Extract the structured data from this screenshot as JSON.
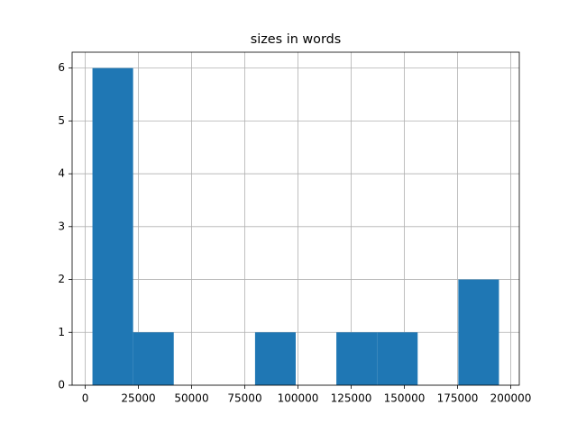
{
  "chart_data": {
    "type": "histogram",
    "title": "sizes in words",
    "bins": [
      3400,
      22508,
      41616,
      60724,
      79832,
      98940,
      118048,
      137156,
      156264,
      175372,
      194480
    ],
    "values": [
      6,
      1,
      0,
      0,
      1,
      0,
      1,
      1,
      0,
      2
    ],
    "color": "#1f77b4",
    "xlim": [
      -6157,
      204037
    ],
    "ylim": [
      0,
      6.3
    ],
    "xticks": [
      0,
      25000,
      50000,
      75000,
      100000,
      125000,
      150000,
      175000,
      200000
    ],
    "yticks": [
      0,
      1,
      2,
      3,
      4,
      5,
      6
    ],
    "grid": true
  }
}
